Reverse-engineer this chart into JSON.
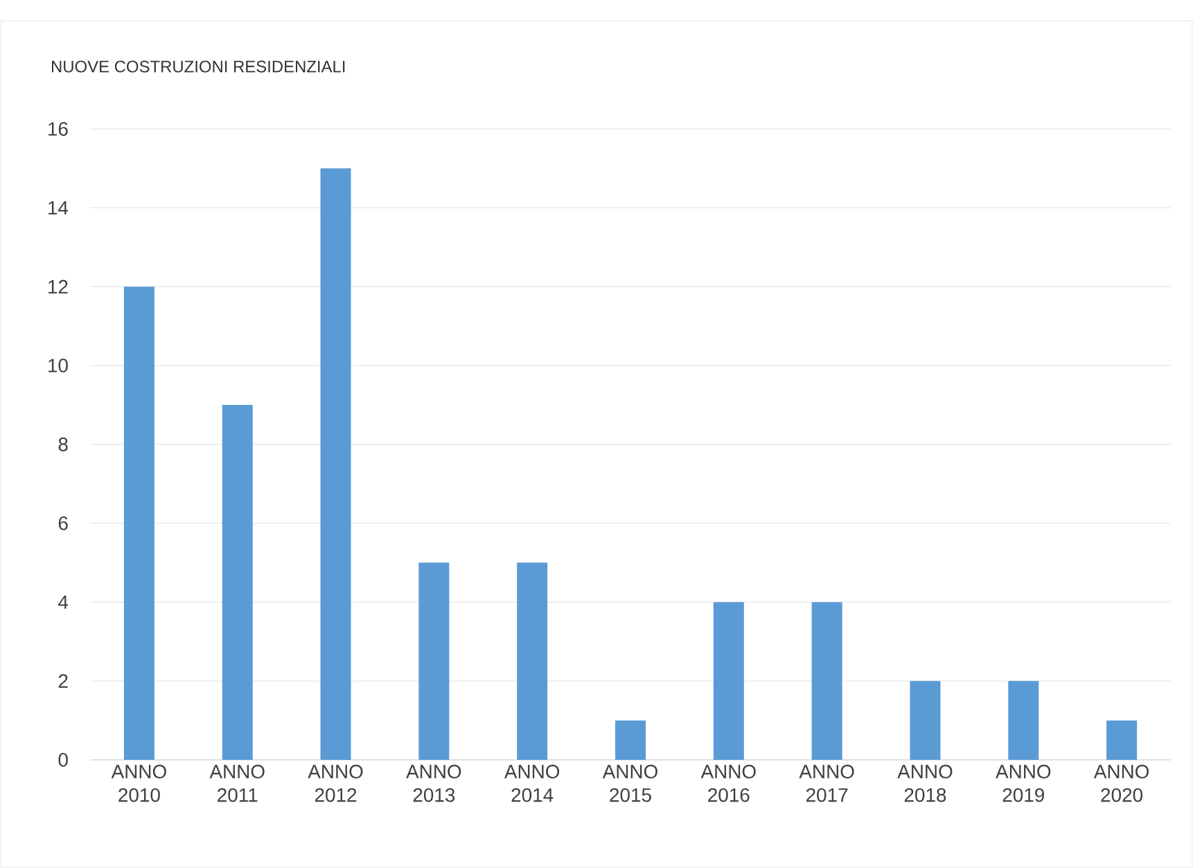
{
  "chart_data": {
    "type": "bar",
    "title": "NUOVE COSTRUZIONI RESIDENZIALI",
    "categories": [
      "ANNO 2010",
      "ANNO 2011",
      "ANNO 2012",
      "ANNO 2013",
      "ANNO 2014",
      "ANNO 2015",
      "ANNO 2016",
      "ANNO 2017",
      "ANNO 2018",
      "ANNO 2019",
      "ANNO 2020"
    ],
    "values": [
      12,
      9,
      15,
      5,
      5,
      1,
      4,
      4,
      2,
      2,
      1
    ],
    "color": "#5b9bd5",
    "ylim": [
      0,
      16
    ],
    "yticks": [
      0,
      2,
      4,
      6,
      8,
      10,
      12,
      14,
      16
    ],
    "grid": "y"
  }
}
